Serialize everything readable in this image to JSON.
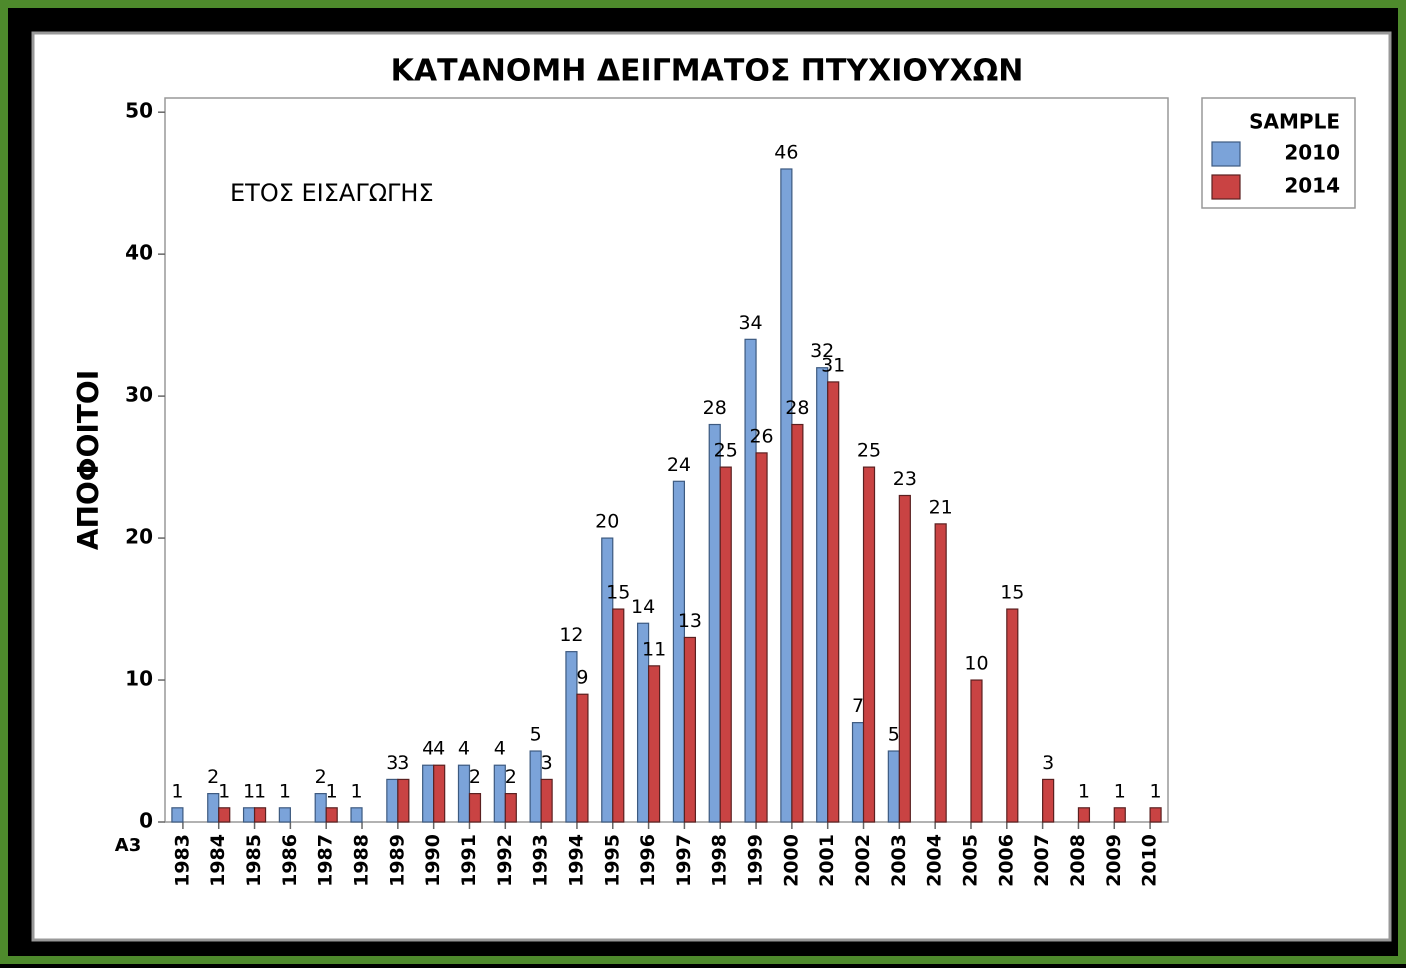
{
  "chart_data": {
    "type": "bar",
    "title": "ΚΑΤΑΝΟΜΗ ΔΕΙΓΜΑΤΟΣ ΠΤΥΧΙΟΥΧΩΝ",
    "annotation": "ΕΤΟΣ ΕΙΣΑΓΩΓΗΣ",
    "y_label": "ΑΠΟΦΟΙΤΟΙ",
    "x_label": "A3",
    "legend_title": "SAMPLE",
    "legend_position": "outside-top-right",
    "categories": [
      "1983",
      "1984",
      "1985",
      "1986",
      "1987",
      "1988",
      "1989",
      "1990",
      "1991",
      "1992",
      "1993",
      "1994",
      "1995",
      "1996",
      "1997",
      "1998",
      "1999",
      "2000",
      "2001",
      "2002",
      "2003",
      "2004",
      "2005",
      "2006",
      "2007",
      "2008",
      "2009",
      "2010"
    ],
    "series": [
      {
        "name": "2010",
        "color": "#7ba3d9",
        "values": [
          1,
          2,
          1,
          1,
          2,
          1,
          3,
          4,
          4,
          4,
          5,
          12,
          20,
          14,
          24,
          28,
          34,
          46,
          32,
          7,
          5,
          null,
          null,
          null,
          null,
          null,
          null,
          null
        ]
      },
      {
        "name": "2014",
        "color": "#c94343",
        "values": [
          null,
          1,
          1,
          null,
          1,
          null,
          3,
          4,
          2,
          2,
          3,
          9,
          15,
          11,
          13,
          25,
          26,
          28,
          31,
          25,
          23,
          21,
          10,
          15,
          3,
          1,
          1,
          1
        ]
      }
    ],
    "ylim": [
      0,
      51
    ],
    "yticks": [
      0,
      10,
      20,
      30,
      40,
      50
    ]
  }
}
